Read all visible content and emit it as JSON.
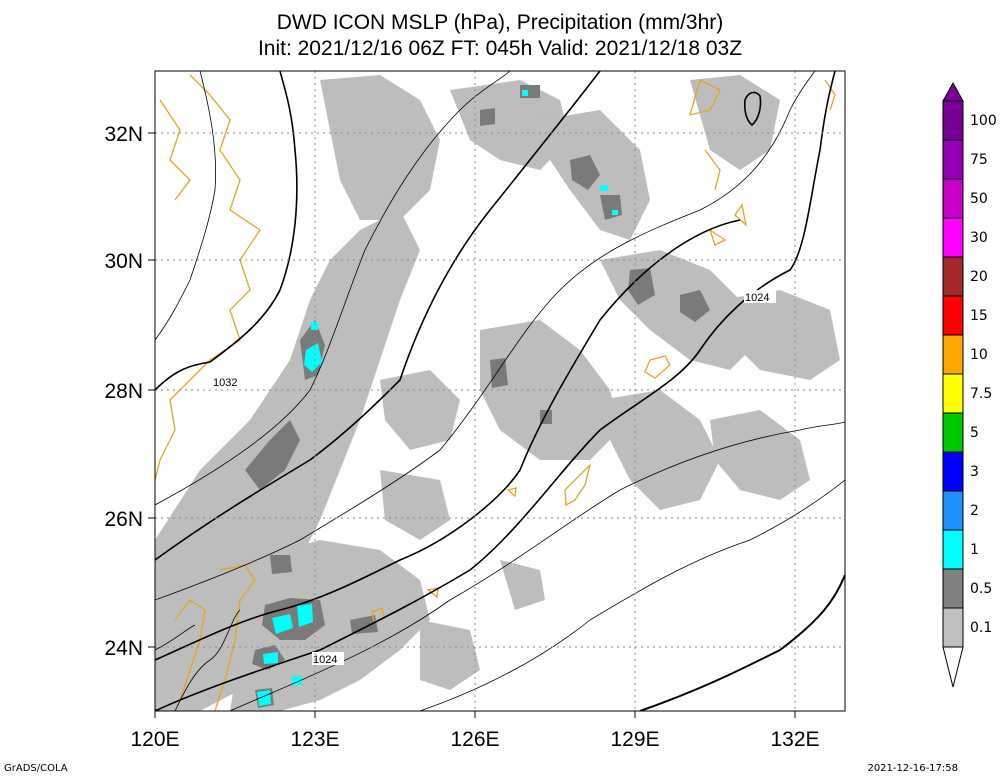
{
  "title": {
    "line1": "DWD ICON MSLP (hPa), Precipitation (mm/3hr)",
    "line2": "Init: 2021/12/16 06Z  FT: 045h  Valid: 2021/12/18 03Z"
  },
  "axes": {
    "x_ticks": [
      "120E",
      "123E",
      "126E",
      "129E",
      "132E"
    ],
    "y_ticks": [
      "32N",
      "30N",
      "28N",
      "26N",
      "24N"
    ]
  },
  "isobar_labels": [
    "1032",
    "1024",
    "1024"
  ],
  "colorbar": {
    "labels": [
      "100",
      "75",
      "50",
      "30",
      "20",
      "15",
      "10",
      "7.5",
      "5",
      "3",
      "2",
      "1",
      "0.5",
      "0.1"
    ],
    "colors": [
      "#780096",
      "#9600b4",
      "#c800c8",
      "#ff00ff",
      "#a52a2a",
      "#ff0000",
      "#ffa500",
      "#ffff00",
      "#00c800",
      "#0000ff",
      "#1e90ff",
      "#00ffff",
      "#808080",
      "#c0c0c0"
    ]
  },
  "colors": {
    "precip_light": "#bdbdbd",
    "precip_mid": "#7a7a7a",
    "precip_high": "#00ffff",
    "coastline": "#e6a520"
  },
  "footer": {
    "left": "GrADS/COLA",
    "right": "2021-12-16-17:58"
  }
}
